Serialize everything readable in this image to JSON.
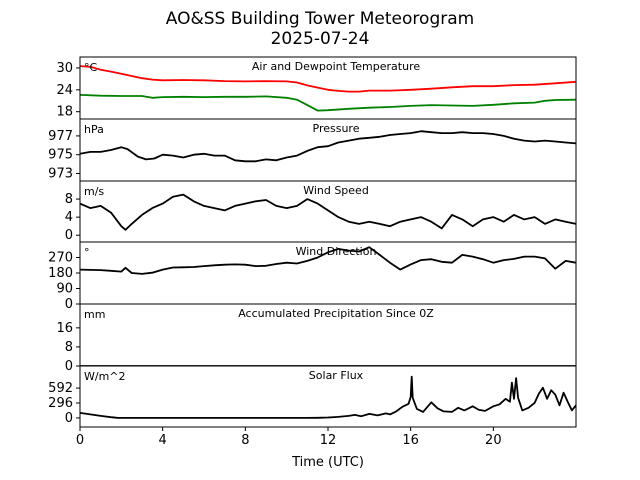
{
  "figure": {
    "title_line1": "AO&SS Building Tower Meteorogram",
    "title_line2": "2025-07-24",
    "xlabel": "Time (UTC)"
  },
  "chart_data": [
    {
      "type": "line",
      "title": "Air and Dewpoint Temperature",
      "unit": "°C",
      "xlim": [
        0,
        24
      ],
      "ylim": [
        16,
        33
      ],
      "yticks": [
        18,
        24,
        30
      ],
      "series": [
        {
          "name": "Air Temperature",
          "color": "#ff0000",
          "x": [
            0,
            0.5,
            1,
            1.5,
            2,
            2.5,
            3,
            3.5,
            4,
            5,
            6,
            7,
            8,
            9,
            10,
            10.5,
            11,
            11.5,
            12,
            12.5,
            13,
            13.5,
            14,
            15,
            16,
            17,
            18,
            19,
            20,
            21,
            22,
            23,
            24
          ],
          "y": [
            30.5,
            30.3,
            29.5,
            29.0,
            28.4,
            27.8,
            27.2,
            26.8,
            26.6,
            26.7,
            26.6,
            26.4,
            26.3,
            26.4,
            26.3,
            26.0,
            25.2,
            24.6,
            24.0,
            23.7,
            23.5,
            23.5,
            23.8,
            23.8,
            24.0,
            24.3,
            24.7,
            25.0,
            25.0,
            25.3,
            25.4,
            25.8,
            26.2
          ]
        },
        {
          "name": "Dewpoint",
          "color": "#008000",
          "x": [
            0,
            1,
            2,
            3,
            3.5,
            4,
            5,
            6,
            7,
            8,
            9,
            10,
            10.5,
            11,
            11.5,
            12,
            13,
            14,
            15,
            16,
            17,
            18,
            19,
            20,
            21,
            22,
            22.5,
            23,
            24
          ],
          "y": [
            22.6,
            22.4,
            22.3,
            22.3,
            21.8,
            22.0,
            22.1,
            22.0,
            22.1,
            22.1,
            22.2,
            21.8,
            21.3,
            19.8,
            18.3,
            18.4,
            18.8,
            19.1,
            19.3,
            19.6,
            19.8,
            19.7,
            19.6,
            19.9,
            20.3,
            20.5,
            21.0,
            21.2,
            21.3
          ]
        }
      ]
    },
    {
      "type": "line",
      "title": "Pressure",
      "unit": "hPa",
      "xlim": [
        0,
        24
      ],
      "ylim": [
        972.2,
        978.8
      ],
      "yticks": [
        973,
        975,
        977
      ],
      "series": [
        {
          "name": "Pressure",
          "color": "#000000",
          "x": [
            0,
            0.5,
            1,
            1.5,
            2,
            2.3,
            2.8,
            3.2,
            3.6,
            4,
            4.5,
            5,
            5.5,
            6,
            6.5,
            7,
            7.5,
            8,
            8.5,
            9,
            9.5,
            10,
            10.5,
            11,
            11.5,
            12,
            12.5,
            13,
            13.5,
            14,
            14.5,
            15,
            15.5,
            16,
            16.5,
            17,
            17.5,
            18,
            18.5,
            19,
            19.5,
            20,
            20.5,
            21,
            21.5,
            22,
            22.5,
            23,
            23.5,
            24
          ],
          "y": [
            975.1,
            975.3,
            975.3,
            975.5,
            975.8,
            975.6,
            974.8,
            974.5,
            974.6,
            975.0,
            974.9,
            974.7,
            975.0,
            975.1,
            974.9,
            974.9,
            974.4,
            974.3,
            974.3,
            974.5,
            974.4,
            974.7,
            974.9,
            975.4,
            975.8,
            975.9,
            976.3,
            976.5,
            976.7,
            976.8,
            976.9,
            977.1,
            977.2,
            977.3,
            977.5,
            977.4,
            977.3,
            977.3,
            977.4,
            977.3,
            977.3,
            977.2,
            977.0,
            976.7,
            976.5,
            976.4,
            976.5,
            976.4,
            976.3,
            976.2
          ]
        }
      ]
    },
    {
      "type": "line",
      "title": "Wind Speed",
      "unit": "m/s",
      "xlim": [
        0,
        24
      ],
      "ylim": [
        -1.5,
        12
      ],
      "yticks": [
        0,
        4,
        8
      ],
      "series": [
        {
          "name": "Wind Speed",
          "color": "#000000",
          "x": [
            0,
            0.5,
            1,
            1.5,
            2,
            2.2,
            2.5,
            3,
            3.5,
            4,
            4.5,
            5,
            5.5,
            6,
            6.5,
            7,
            7.5,
            8,
            8.5,
            9,
            9.5,
            10,
            10.5,
            11,
            11.5,
            12,
            12.5,
            13,
            13.5,
            14,
            14.5,
            15,
            15.5,
            16,
            16.5,
            17,
            17.5,
            18,
            18.5,
            19,
            19.5,
            20,
            20.5,
            21,
            21.5,
            22,
            22.5,
            23,
            23.5,
            24
          ],
          "y": [
            7.0,
            6.0,
            6.5,
            5.0,
            2.0,
            1.2,
            2.5,
            4.5,
            6.0,
            7.0,
            8.5,
            9.0,
            7.5,
            6.5,
            6.0,
            5.5,
            6.5,
            7.0,
            7.5,
            7.8,
            6.5,
            6.0,
            6.5,
            8.0,
            7.0,
            5.5,
            4.0,
            3.0,
            2.5,
            3.0,
            2.5,
            2.0,
            3.0,
            3.5,
            4.0,
            3.0,
            1.5,
            4.5,
            3.5,
            2.0,
            3.5,
            4.0,
            3.0,
            4.5,
            3.5,
            4.0,
            2.5,
            3.5,
            3.0,
            2.5
          ]
        }
      ]
    },
    {
      "type": "line",
      "title": "Wind Direction",
      "unit": "°",
      "xlim": [
        0,
        24
      ],
      "ylim": [
        0,
        360
      ],
      "yticks": [
        0,
        90,
        180,
        270
      ],
      "series": [
        {
          "name": "Wind Direction",
          "color": "#000000",
          "x": [
            0,
            0.5,
            1,
            1.5,
            2,
            2.2,
            2.5,
            3,
            3.5,
            4,
            4.5,
            5,
            5.5,
            6,
            6.5,
            7,
            7.5,
            8,
            8.5,
            9,
            9.5,
            10,
            10.5,
            11,
            11.5,
            12,
            12.5,
            13,
            13.5,
            14,
            14.5,
            15,
            15.5,
            16,
            16.5,
            17,
            17.5,
            18,
            18.5,
            19,
            19.5,
            20,
            20.5,
            21,
            21.5,
            22,
            22.5,
            23,
            23.5,
            24
          ],
          "y": [
            200,
            198,
            197,
            193,
            188,
            210,
            180,
            175,
            182,
            200,
            212,
            213,
            215,
            220,
            225,
            228,
            230,
            228,
            220,
            222,
            232,
            240,
            235,
            250,
            270,
            300,
            320,
            310,
            305,
            330,
            285,
            240,
            200,
            230,
            255,
            260,
            245,
            240,
            285,
            275,
            260,
            240,
            255,
            262,
            275,
            275,
            265,
            205,
            250,
            240
          ]
        }
      ]
    },
    {
      "type": "line",
      "title": "Accumulated Precipitation Since 0Z",
      "unit": "mm",
      "xlim": [
        0,
        24
      ],
      "ylim": [
        0,
        26
      ],
      "yticks": [
        0,
        8,
        16
      ],
      "series": [
        {
          "name": "Accumulated Precipitation",
          "color": "#000000",
          "x": [
            0,
            24
          ],
          "y": [
            0,
            0
          ]
        }
      ]
    },
    {
      "type": "line",
      "title": "Solar Flux",
      "unit": "W/m^2",
      "xlim": [
        0,
        24
      ],
      "ylim": [
        -180,
        1030
      ],
      "yticks": [
        0,
        296,
        592
      ],
      "series": [
        {
          "name": "Solar Flux",
          "color": "#000000",
          "x": [
            0,
            0.5,
            1,
            1.5,
            1.8,
            2,
            3,
            4,
            5,
            6,
            7,
            8,
            9,
            10,
            10.5,
            11,
            11.5,
            12,
            12.5,
            13,
            13.3,
            13.6,
            14,
            14.4,
            14.8,
            15,
            15.3,
            15.6,
            15.9,
            16.0,
            16.05,
            16.1,
            16.3,
            16.6,
            17,
            17.3,
            17.6,
            18,
            18.3,
            18.6,
            19,
            19.3,
            19.6,
            20,
            20.3,
            20.6,
            20.8,
            20.9,
            21.0,
            21.1,
            21.2,
            21.4,
            21.7,
            22,
            22.2,
            22.4,
            22.6,
            22.8,
            23,
            23.2,
            23.4,
            23.6,
            23.8,
            24
          ],
          "y": [
            100,
            70,
            40,
            15,
            3,
            0,
            0,
            0,
            0,
            0,
            0,
            0,
            0,
            0,
            0,
            0,
            2,
            8,
            20,
            40,
            60,
            35,
            80,
            50,
            90,
            70,
            130,
            220,
            280,
            420,
            820,
            400,
            180,
            120,
            310,
            190,
            130,
            120,
            200,
            150,
            230,
            160,
            140,
            230,
            270,
            380,
            320,
            700,
            380,
            790,
            400,
            150,
            200,
            300,
            480,
            600,
            380,
            550,
            460,
            250,
            500,
            320,
            150,
            250
          ]
        }
      ]
    }
  ]
}
